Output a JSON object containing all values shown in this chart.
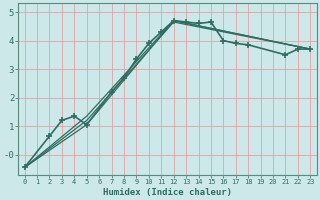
{
  "xlabel": "Humidex (Indice chaleur)",
  "bg_color": "#cce8e8",
  "grid_color": "#e8a0a0",
  "line_color": "#2d6e62",
  "tick_color": "#2d6e62",
  "spine_color": "#5a8a80",
  "xlim": [
    -0.5,
    23.5
  ],
  "ylim": [
    -0.7,
    5.3
  ],
  "yticks": [
    0,
    1,
    2,
    3,
    4,
    5
  ],
  "ytick_labels": [
    "-0",
    "1",
    "2",
    "3",
    "4",
    "5"
  ],
  "xtick_labels": [
    "0",
    "1",
    "2",
    "3",
    "4",
    "5",
    "6",
    "7",
    "8",
    "9",
    "10",
    "11",
    "12",
    "13",
    "14",
    "15",
    "16",
    "17",
    "18",
    "19",
    "20",
    "21",
    "22",
    "23"
  ],
  "series_main": {
    "x": [
      0,
      2,
      3,
      4,
      5,
      7,
      8,
      9,
      10,
      11,
      12,
      13,
      14,
      15,
      16,
      17,
      18,
      21,
      22,
      23
    ],
    "y": [
      -0.45,
      0.65,
      1.2,
      1.35,
      1.05,
      2.2,
      2.7,
      3.35,
      3.9,
      4.3,
      4.7,
      4.65,
      4.6,
      4.65,
      4.0,
      3.9,
      3.85,
      3.5,
      3.7,
      3.7
    ],
    "marker": "+",
    "markersize": 4,
    "linewidth": 1.2
  },
  "series_lines": [
    {
      "x": [
        0,
        5,
        12,
        23
      ],
      "y": [
        -0.45,
        1.05,
        4.7,
        3.7
      ]
    },
    {
      "x": [
        0,
        5,
        12,
        23
      ],
      "y": [
        -0.45,
        1.35,
        4.7,
        3.7
      ]
    },
    {
      "x": [
        0,
        5,
        12,
        23
      ],
      "y": [
        -0.45,
        1.2,
        4.65,
        3.7
      ]
    }
  ]
}
